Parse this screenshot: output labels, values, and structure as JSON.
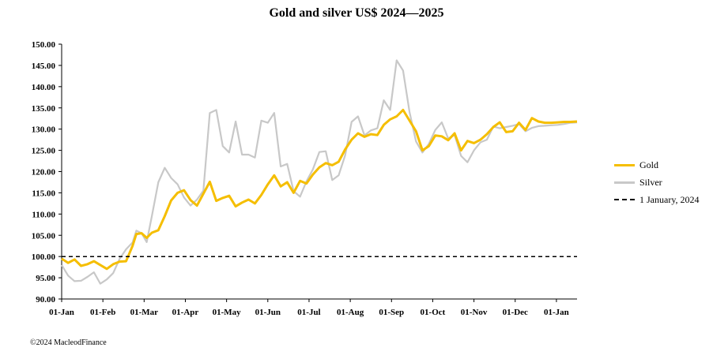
{
  "chart_data": {
    "type": "line",
    "title": "Gold and silver  US$ 2024—2025",
    "xlabel": "",
    "ylabel": "",
    "ylim": [
      90,
      150
    ],
    "y_ticks": [
      "150.00",
      "145.00",
      "140.00",
      "135.00",
      "130.00",
      "125.00",
      "120.00",
      "115.00",
      "110.00",
      "105.00",
      "100.00",
      "95.00",
      "90.00"
    ],
    "x_ticks": [
      "01-Jan",
      "01-Feb",
      "01-Mar",
      "01-Apr",
      "01-May",
      "01-Jun",
      "01-Jul",
      "01-Aug",
      "01-Sep",
      "01-Oct",
      "01-Nov",
      "01-Dec",
      "01-Jan"
    ],
    "legend_position": "right",
    "grid": false,
    "series": [
      {
        "name": "Gold",
        "color": "#F5BE00",
        "x": [
          0,
          5,
          10,
          15,
          20,
          25,
          30,
          35,
          40,
          45,
          50,
          55,
          58,
          62,
          66,
          70,
          75,
          80,
          85,
          90,
          95,
          100,
          105,
          110,
          115,
          120,
          125,
          130,
          135,
          140,
          145,
          150,
          155,
          160,
          165,
          170,
          175,
          180,
          185,
          190,
          195,
          200,
          205,
          210,
          215,
          220,
          225,
          230,
          235,
          240,
          245,
          250,
          255,
          260,
          265,
          270,
          275,
          280,
          285,
          290,
          295,
          300,
          305,
          310,
          315,
          320,
          325,
          330,
          335,
          340,
          345,
          350,
          355,
          360,
          365,
          370,
          375,
          380,
          385,
          390,
          395,
          400
        ],
        "values": [
          99.5,
          98.5,
          99.3,
          97.8,
          98.2,
          98.9,
          98.0,
          97.1,
          98.2,
          98.8,
          98.9,
          102.5,
          105.3,
          105.5,
          104.4,
          105.6,
          106.2,
          109.5,
          113.2,
          115.0,
          115.6,
          113.3,
          112.0,
          114.8,
          117.6,
          113.1,
          113.8,
          114.3,
          111.8,
          112.7,
          113.4,
          112.5,
          114.5,
          117.0,
          119.1,
          116.5,
          117.5,
          115.0,
          117.8,
          117.2,
          119.3,
          121.0,
          122.0,
          121.5,
          122.3,
          125.2,
          127.5,
          129.0,
          128.2,
          128.8,
          128.6,
          131.0,
          132.3,
          133.0,
          134.5,
          132.0,
          129.5,
          125.0,
          126.0,
          128.5,
          128.3,
          127.4,
          129.0,
          125.0,
          127.2,
          126.7,
          127.5,
          128.8,
          130.5,
          131.6,
          129.3,
          129.5,
          131.5,
          129.8,
          132.6,
          131.8,
          131.5,
          131.5,
          131.6,
          131.7,
          131.7,
          131.8
        ]
      },
      {
        "name": "Silver",
        "color": "#C8C8C8",
        "x": [
          0,
          5,
          10,
          15,
          20,
          25,
          30,
          35,
          40,
          45,
          50,
          55,
          58,
          62,
          66,
          70,
          75,
          80,
          85,
          90,
          95,
          100,
          105,
          110,
          115,
          120,
          125,
          130,
          135,
          140,
          145,
          150,
          155,
          160,
          165,
          170,
          175,
          180,
          185,
          190,
          195,
          200,
          205,
          210,
          215,
          220,
          225,
          230,
          235,
          240,
          245,
          250,
          255,
          260,
          265,
          270,
          275,
          280,
          285,
          290,
          295,
          300,
          305,
          310,
          315,
          320,
          325,
          330,
          335,
          340,
          345,
          350,
          355,
          360,
          365,
          370,
          375,
          380,
          385,
          390,
          395,
          400
        ],
        "values": [
          98.0,
          95.5,
          94.2,
          94.3,
          95.2,
          96.3,
          93.6,
          94.6,
          96.1,
          99.5,
          101.7,
          103.3,
          106.1,
          105.5,
          103.4,
          109.5,
          117.5,
          120.9,
          118.5,
          117.0,
          113.9,
          112.0,
          113.4,
          115.5,
          133.8,
          134.5,
          126.0,
          124.5,
          131.8,
          124.0,
          124.0,
          123.3,
          132.0,
          131.5,
          133.8,
          121.2,
          121.8,
          115.4,
          114.1,
          117.7,
          120.5,
          124.6,
          124.8,
          118.0,
          119.1,
          123.8,
          131.7,
          133.0,
          128.5,
          129.7,
          130.2,
          136.8,
          134.5,
          146.2,
          143.8,
          134.0,
          127.1,
          124.5,
          126.5,
          129.8,
          131.6,
          127.8,
          128.6,
          123.7,
          122.2,
          125.0,
          126.9,
          127.5,
          130.6,
          130.2,
          130.5,
          130.8,
          131.2,
          129.5,
          130.3,
          130.7,
          130.8,
          130.9,
          131.0,
          131.2,
          131.5,
          131.6
        ]
      },
      {
        "name": "1 January, 2024",
        "color": "#000000",
        "dashed": true,
        "x": [
          0,
          400
        ],
        "values": [
          100,
          100
        ]
      }
    ]
  },
  "copyright": "©2024 MacleodFinance"
}
